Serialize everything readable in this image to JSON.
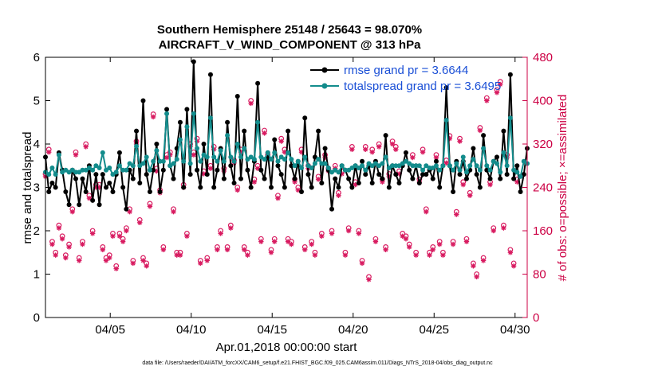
{
  "chart_data": {
    "type": "line",
    "title_line1": "Southern Hemisphere 25148 / 25643 = 98.070%",
    "title_line2": "AIRCRAFT_V_WIND_COMPONENT @ 313 hPa",
    "xlabel": "Apr.01,2018 00:00:00 start",
    "ylabel_left": "rmse and totalspread",
    "ylabel_right": "# of obs: o=possible; ×=assimilated",
    "footnote": "data file: /Users/raeder/DAI/ATM_forcXX/CAM6_setup/f.e21.FHIST_BGC.f09_025.CAM6assim.011/Diags_NTrS_2018-04/obs_diag_output.nc",
    "x_range": [
      1.0,
      30.75
    ],
    "ylim_left": [
      0,
      6
    ],
    "ylim_right": [
      0,
      480
    ],
    "x_ticks": [
      5,
      10,
      15,
      20,
      25,
      30
    ],
    "x_tick_labels": [
      "04/05",
      "04/10",
      "04/15",
      "04/20",
      "04/25",
      "04/30"
    ],
    "y_ticks_left": [
      0,
      1,
      2,
      3,
      4,
      5,
      6
    ],
    "y_ticks_right": [
      0,
      80,
      160,
      240,
      320,
      400,
      480
    ],
    "legend": [
      "rmse grand pr = 3.6644",
      "totalspread grand pr = 3.6495"
    ],
    "colors": {
      "rmse": "#000000",
      "spread": "#138c8c",
      "obs": "#d81b60",
      "axis_right": "#cc0044",
      "legend_text": "#1a4fd6"
    },
    "series": [
      {
        "name": "rmse",
        "values": [
          3.7,
          2.9,
          3.1,
          3.0,
          3.8,
          3.4,
          2.9,
          2.6,
          3.4,
          3.2,
          2.6,
          3.2,
          2.9,
          3.5,
          2.7,
          3.3,
          2.6,
          3.3,
          3.0,
          3.1,
          2.9,
          3.3,
          3.8,
          3.0,
          2.5,
          3.4,
          3.2,
          4.3,
          3.1,
          5.0,
          3.3,
          2.9,
          3.4,
          4.0,
          2.9,
          3.4,
          4.8,
          3.5,
          3.2,
          3.9,
          4.5,
          3.0,
          4.8,
          3.3,
          5.9,
          3.4,
          3.0,
          4.0,
          3.3,
          5.6,
          3.0,
          3.4,
          3.9,
          3.2,
          4.5,
          3.5,
          3.1,
          5.1,
          3.2,
          4.3,
          3.4,
          3.0,
          3.6,
          5.4,
          3.4,
          3.2,
          3.8,
          3.0,
          4.1,
          3.5,
          3.3,
          3.0,
          4.3,
          3.5,
          3.2,
          3.6,
          2.9,
          4.6,
          3.3,
          3.0,
          3.7,
          4.3,
          3.1,
          3.9,
          3.4,
          2.5,
          3.2,
          3.0,
          3.5,
          3.4,
          3.2,
          3.0,
          3.5,
          3.1,
          3.6,
          3.3,
          3.5,
          3.1,
          3.6,
          3.3,
          3.2,
          4.2,
          3.0,
          3.5,
          3.3,
          3.1,
          3.5,
          3.8,
          3.4,
          3.2,
          3.5,
          3.1,
          3.3,
          3.3,
          3.4,
          3.2,
          3.6,
          3.0,
          3.5,
          5.3,
          3.5,
          2.9,
          3.6,
          3.3,
          3.6,
          3.2,
          3.4,
          3.9,
          3.3,
          3.0,
          4.2,
          3.4,
          3.2,
          3.6,
          3.7,
          3.2,
          4.3,
          3.3,
          5.6,
          3.2,
          3.5,
          2.9,
          3.3,
          3.9
        ]
      },
      {
        "name": "totalspread",
        "values": [
          3.35,
          3.3,
          3.45,
          3.3,
          3.75,
          3.35,
          3.4,
          3.35,
          3.4,
          3.35,
          3.35,
          3.4,
          3.4,
          3.45,
          3.4,
          3.5,
          3.45,
          3.8,
          3.4,
          3.45,
          3.3,
          3.35,
          3.5,
          3.4,
          3.4,
          3.55,
          3.5,
          3.95,
          3.5,
          3.55,
          3.7,
          3.4,
          3.6,
          3.85,
          3.6,
          3.6,
          4.7,
          3.5,
          3.55,
          3.65,
          4.1,
          3.6,
          4.4,
          3.55,
          4.7,
          3.9,
          3.6,
          3.75,
          3.7,
          4.6,
          3.7,
          3.6,
          3.85,
          3.6,
          4.2,
          3.7,
          3.6,
          4.0,
          3.7,
          3.9,
          3.65,
          3.7,
          3.65,
          4.5,
          3.7,
          3.65,
          3.8,
          3.65,
          3.8,
          3.6,
          3.7,
          3.65,
          3.8,
          3.65,
          3.5,
          3.6,
          3.45,
          3.7,
          3.5,
          3.45,
          3.55,
          3.65,
          3.55,
          3.55,
          3.45,
          3.35,
          3.4,
          3.35,
          3.5,
          3.4,
          3.4,
          3.45,
          3.5,
          3.45,
          3.5,
          3.4,
          3.55,
          3.5,
          3.55,
          3.5,
          3.55,
          3.7,
          3.45,
          3.5,
          3.5,
          3.5,
          3.55,
          3.6,
          3.55,
          3.5,
          3.5,
          3.5,
          3.4,
          3.5,
          3.45,
          3.45,
          3.5,
          3.4,
          3.5,
          4.55,
          3.5,
          3.4,
          3.55,
          3.4,
          3.7,
          3.35,
          3.5,
          3.65,
          3.5,
          3.4,
          3.9,
          3.5,
          3.4,
          3.6,
          3.55,
          3.35,
          3.8,
          3.5,
          4.6,
          3.4,
          3.35,
          3.25,
          3.6,
          3.55
        ]
      },
      {
        "name": "obs_possible",
        "values": [
          265,
          310,
          140,
          120,
          170,
          150,
          115,
          135,
          200,
          305,
          110,
          140,
          320,
          225,
          160,
          245,
          245,
          130,
          110,
          115,
          155,
          95,
          155,
          145,
          165,
          200,
          105,
          325,
          180,
          110,
          100,
          210,
          375,
          275,
          235,
          130,
          300,
          305,
          200,
          120,
          120,
          245,
          155,
          320,
          305,
          330,
          105,
          270,
          110,
          280,
          315,
          130,
          160,
          275,
          130,
          170,
          290,
          240,
          310,
          130,
          120,
          400,
          255,
          280,
          145,
          345,
          300,
          125,
          145,
          225,
          330,
          310,
          145,
          140,
          255,
          240,
          310,
          130,
          280,
          140,
          120,
          260,
          155,
          300,
          275,
          160,
          280,
          230,
          270,
          120,
          165,
          315,
          250,
          160,
          105,
          315,
          75,
          310,
          145,
          320,
          255,
          130,
          265,
          325,
          315,
          270,
          155,
          150,
          135,
          300,
          120,
          255,
          310,
          200,
          120,
          130,
          300,
          140,
          120,
          290,
          335,
          140,
          195,
          330,
          250,
          145,
          230,
          100,
          80,
          350,
          110,
          405,
          250,
          165,
          420,
          435,
          170,
          300,
          125,
          100,
          255
        ]
      },
      {
        "name": "obs_assimilated",
        "values": [
          260,
          305,
          135,
          115,
          165,
          145,
          110,
          130,
          195,
          300,
          105,
          135,
          315,
          220,
          155,
          240,
          240,
          125,
          105,
          110,
          150,
          90,
          150,
          140,
          160,
          195,
          100,
          320,
          175,
          105,
          95,
          205,
          370,
          270,
          230,
          125,
          295,
          300,
          195,
          115,
          115,
          240,
          150,
          315,
          300,
          325,
          100,
          265,
          105,
          275,
          310,
          125,
          155,
          270,
          125,
          165,
          285,
          235,
          305,
          125,
          115,
          395,
          250,
          275,
          140,
          340,
          295,
          120,
          140,
          220,
          325,
          305,
          140,
          135,
          250,
          235,
          305,
          125,
          275,
          135,
          115,
          255,
          150,
          295,
          270,
          155,
          275,
          225,
          265,
          115,
          160,
          310,
          245,
          155,
          100,
          310,
          70,
          305,
          140,
          315,
          250,
          125,
          260,
          320,
          310,
          265,
          150,
          145,
          130,
          295,
          115,
          250,
          305,
          195,
          115,
          125,
          295,
          135,
          115,
          285,
          330,
          135,
          190,
          325,
          245,
          140,
          225,
          95,
          75,
          345,
          105,
          400,
          245,
          160,
          415,
          430,
          165,
          295,
          120,
          95,
          250
        ]
      }
    ]
  }
}
